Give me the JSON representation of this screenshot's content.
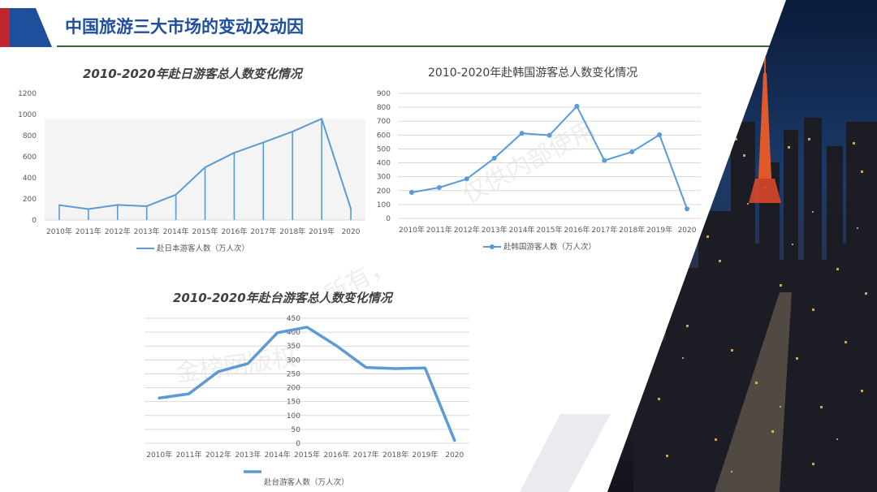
{
  "slide": {
    "title": "中国旅游三大市场的变动及动因"
  },
  "watermarks": [
    "仅供内部使用",
    "所有，",
    "金榜网版权"
  ],
  "colors": {
    "accent_red": "#c0272d",
    "accent_blue": "#1f4e9c",
    "series": "#5b9bd5",
    "rule_green": "#2e6b3b"
  },
  "chart_data": [
    {
      "id": "japan",
      "type": "area",
      "title": "2010-2020年赴日游客总人数变化情况",
      "categories": [
        "2010年",
        "2011年",
        "2012年",
        "2013年",
        "2014年",
        "2015年",
        "2016年",
        "2017年",
        "2018年",
        "2019年",
        "2020"
      ],
      "series": [
        {
          "name": "赴日本游客人数（万人次）",
          "values": [
            141,
            104,
            143,
            131,
            240,
            499,
            637,
            735,
            838,
            959,
            107
          ]
        }
      ],
      "ylim": [
        0,
        1200
      ],
      "yticks": [
        "0",
        "200",
        "400",
        "600",
        "800",
        "1000",
        "1200"
      ],
      "grid": false,
      "legend": "bottom"
    },
    {
      "id": "korea",
      "type": "line",
      "title": "2010-2020年赴韩国游客总人数变化情况",
      "categories": [
        "2010年",
        "2011年",
        "2012年",
        "2013年",
        "2014年",
        "2015年",
        "2016年",
        "2017年",
        "2018年",
        "2019年",
        "2020"
      ],
      "series": [
        {
          "name": "赴韩国游客人数（万人次）",
          "values": [
            187,
            222,
            284,
            433,
            613,
            598,
            807,
            417,
            479,
            602,
            69
          ]
        }
      ],
      "ylim": [
        0,
        900
      ],
      "yticks": [
        "0",
        "100",
        "200",
        "300",
        "400",
        "500",
        "600",
        "700",
        "800",
        "900"
      ],
      "grid": true,
      "legend": "bottom"
    },
    {
      "id": "taiwan",
      "type": "line",
      "title": "2010-2020年赴台游客总人数变化情况",
      "categories": [
        "2010年",
        "2011年",
        "2012年",
        "2013年",
        "2014年",
        "2015年",
        "2016年",
        "2017年",
        "2018年",
        "2019年",
        "2020"
      ],
      "series": [
        {
          "name": "赴台游客人数（万人次）",
          "values": [
            163,
            178,
            258,
            287,
            398,
            418,
            351,
            273,
            269,
            271,
            10
          ]
        }
      ],
      "ylim": [
        0,
        450
      ],
      "yticks": [
        "0",
        "50",
        "100",
        "150",
        "200",
        "250",
        "300",
        "350",
        "400",
        "450"
      ],
      "grid": true,
      "legend": "bottom"
    }
  ]
}
